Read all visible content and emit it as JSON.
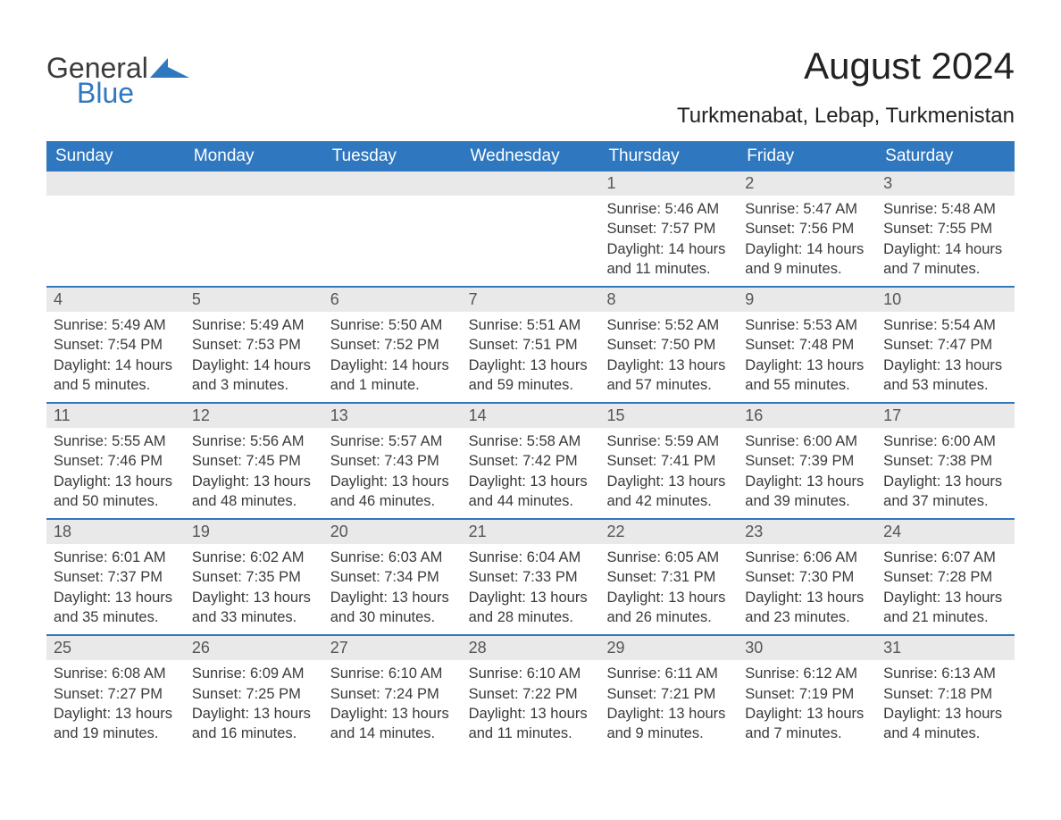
{
  "brand": {
    "word1": "General",
    "word2": "Blue",
    "logo_color": "#2f78c0",
    "text_color_dark": "#3b3b3b",
    "text_color_blue": "#3078c0"
  },
  "header": {
    "month_title": "August 2024",
    "location": "Turkmenabat, Lebap, Turkmenistan",
    "title_color": "#222222",
    "title_fontsize": 42,
    "location_fontsize": 24
  },
  "calendar": {
    "weekday_bg": "#2f78c0",
    "weekday_text_color": "#ffffff",
    "weekday_fontsize": 19,
    "day_number_bg": "#e9e9e9",
    "day_number_color": "#555555",
    "day_text_color": "#3a3a3a",
    "row_border_color": "#2f78c0",
    "background_color": "#ffffff",
    "weekdays": [
      "Sunday",
      "Monday",
      "Tuesday",
      "Wednesday",
      "Thursday",
      "Friday",
      "Saturday"
    ],
    "weeks": [
      [
        null,
        null,
        null,
        null,
        {
          "n": "1",
          "sunrise": "Sunrise: 5:46 AM",
          "sunset": "Sunset: 7:57 PM",
          "daylight": "Daylight: 14 hours and 11 minutes."
        },
        {
          "n": "2",
          "sunrise": "Sunrise: 5:47 AM",
          "sunset": "Sunset: 7:56 PM",
          "daylight": "Daylight: 14 hours and 9 minutes."
        },
        {
          "n": "3",
          "sunrise": "Sunrise: 5:48 AM",
          "sunset": "Sunset: 7:55 PM",
          "daylight": "Daylight: 14 hours and 7 minutes."
        }
      ],
      [
        {
          "n": "4",
          "sunrise": "Sunrise: 5:49 AM",
          "sunset": "Sunset: 7:54 PM",
          "daylight": "Daylight: 14 hours and 5 minutes."
        },
        {
          "n": "5",
          "sunrise": "Sunrise: 5:49 AM",
          "sunset": "Sunset: 7:53 PM",
          "daylight": "Daylight: 14 hours and 3 minutes."
        },
        {
          "n": "6",
          "sunrise": "Sunrise: 5:50 AM",
          "sunset": "Sunset: 7:52 PM",
          "daylight": "Daylight: 14 hours and 1 minute."
        },
        {
          "n": "7",
          "sunrise": "Sunrise: 5:51 AM",
          "sunset": "Sunset: 7:51 PM",
          "daylight": "Daylight: 13 hours and 59 minutes."
        },
        {
          "n": "8",
          "sunrise": "Sunrise: 5:52 AM",
          "sunset": "Sunset: 7:50 PM",
          "daylight": "Daylight: 13 hours and 57 minutes."
        },
        {
          "n": "9",
          "sunrise": "Sunrise: 5:53 AM",
          "sunset": "Sunset: 7:48 PM",
          "daylight": "Daylight: 13 hours and 55 minutes."
        },
        {
          "n": "10",
          "sunrise": "Sunrise: 5:54 AM",
          "sunset": "Sunset: 7:47 PM",
          "daylight": "Daylight: 13 hours and 53 minutes."
        }
      ],
      [
        {
          "n": "11",
          "sunrise": "Sunrise: 5:55 AM",
          "sunset": "Sunset: 7:46 PM",
          "daylight": "Daylight: 13 hours and 50 minutes."
        },
        {
          "n": "12",
          "sunrise": "Sunrise: 5:56 AM",
          "sunset": "Sunset: 7:45 PM",
          "daylight": "Daylight: 13 hours and 48 minutes."
        },
        {
          "n": "13",
          "sunrise": "Sunrise: 5:57 AM",
          "sunset": "Sunset: 7:43 PM",
          "daylight": "Daylight: 13 hours and 46 minutes."
        },
        {
          "n": "14",
          "sunrise": "Sunrise: 5:58 AM",
          "sunset": "Sunset: 7:42 PM",
          "daylight": "Daylight: 13 hours and 44 minutes."
        },
        {
          "n": "15",
          "sunrise": "Sunrise: 5:59 AM",
          "sunset": "Sunset: 7:41 PM",
          "daylight": "Daylight: 13 hours and 42 minutes."
        },
        {
          "n": "16",
          "sunrise": "Sunrise: 6:00 AM",
          "sunset": "Sunset: 7:39 PM",
          "daylight": "Daylight: 13 hours and 39 minutes."
        },
        {
          "n": "17",
          "sunrise": "Sunrise: 6:00 AM",
          "sunset": "Sunset: 7:38 PM",
          "daylight": "Daylight: 13 hours and 37 minutes."
        }
      ],
      [
        {
          "n": "18",
          "sunrise": "Sunrise: 6:01 AM",
          "sunset": "Sunset: 7:37 PM",
          "daylight": "Daylight: 13 hours and 35 minutes."
        },
        {
          "n": "19",
          "sunrise": "Sunrise: 6:02 AM",
          "sunset": "Sunset: 7:35 PM",
          "daylight": "Daylight: 13 hours and 33 minutes."
        },
        {
          "n": "20",
          "sunrise": "Sunrise: 6:03 AM",
          "sunset": "Sunset: 7:34 PM",
          "daylight": "Daylight: 13 hours and 30 minutes."
        },
        {
          "n": "21",
          "sunrise": "Sunrise: 6:04 AM",
          "sunset": "Sunset: 7:33 PM",
          "daylight": "Daylight: 13 hours and 28 minutes."
        },
        {
          "n": "22",
          "sunrise": "Sunrise: 6:05 AM",
          "sunset": "Sunset: 7:31 PM",
          "daylight": "Daylight: 13 hours and 26 minutes."
        },
        {
          "n": "23",
          "sunrise": "Sunrise: 6:06 AM",
          "sunset": "Sunset: 7:30 PM",
          "daylight": "Daylight: 13 hours and 23 minutes."
        },
        {
          "n": "24",
          "sunrise": "Sunrise: 6:07 AM",
          "sunset": "Sunset: 7:28 PM",
          "daylight": "Daylight: 13 hours and 21 minutes."
        }
      ],
      [
        {
          "n": "25",
          "sunrise": "Sunrise: 6:08 AM",
          "sunset": "Sunset: 7:27 PM",
          "daylight": "Daylight: 13 hours and 19 minutes."
        },
        {
          "n": "26",
          "sunrise": "Sunrise: 6:09 AM",
          "sunset": "Sunset: 7:25 PM",
          "daylight": "Daylight: 13 hours and 16 minutes."
        },
        {
          "n": "27",
          "sunrise": "Sunrise: 6:10 AM",
          "sunset": "Sunset: 7:24 PM",
          "daylight": "Daylight: 13 hours and 14 minutes."
        },
        {
          "n": "28",
          "sunrise": "Sunrise: 6:10 AM",
          "sunset": "Sunset: 7:22 PM",
          "daylight": "Daylight: 13 hours and 11 minutes."
        },
        {
          "n": "29",
          "sunrise": "Sunrise: 6:11 AM",
          "sunset": "Sunset: 7:21 PM",
          "daylight": "Daylight: 13 hours and 9 minutes."
        },
        {
          "n": "30",
          "sunrise": "Sunrise: 6:12 AM",
          "sunset": "Sunset: 7:19 PM",
          "daylight": "Daylight: 13 hours and 7 minutes."
        },
        {
          "n": "31",
          "sunrise": "Sunrise: 6:13 AM",
          "sunset": "Sunset: 7:18 PM",
          "daylight": "Daylight: 13 hours and 4 minutes."
        }
      ]
    ]
  }
}
